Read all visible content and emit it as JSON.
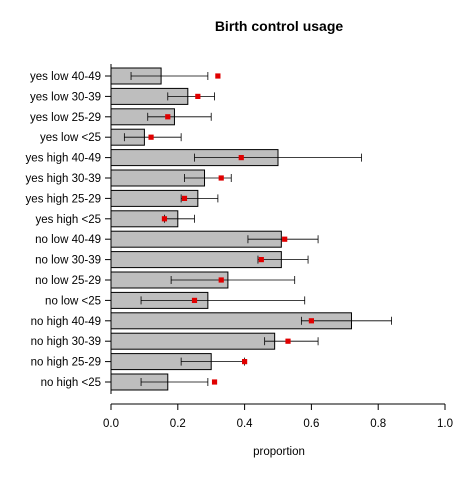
{
  "chart_data": {
    "type": "bar",
    "orientation": "horizontal",
    "title": "Birth control usage",
    "xlabel": "proportion",
    "ylabel": "",
    "xlim": [
      0,
      1
    ],
    "x_ticks": [
      "0.0",
      "0.2",
      "0.4",
      "0.6",
      "0.8",
      "1.0"
    ],
    "grid": false,
    "legend": null,
    "colors": {
      "bar_fill": "#bebebe",
      "bar_stroke": "#000000",
      "marker": "#e00000",
      "error_bar": "#000000"
    },
    "categories": [
      "yes low 40-49",
      "yes low 30-39",
      "yes low 25-29",
      "yes low <25",
      "yes high 40-49",
      "yes high 30-39",
      "yes high 25-29",
      "yes high <25",
      "no low 40-49",
      "no low 30-39",
      "no low 25-29",
      "no low <25",
      "no high 40-49",
      "no high 30-39",
      "no high 25-29",
      "no high <25"
    ],
    "values": [
      0.15,
      0.23,
      0.19,
      0.1,
      0.5,
      0.28,
      0.26,
      0.2,
      0.51,
      0.51,
      0.35,
      0.29,
      0.72,
      0.49,
      0.3,
      0.17
    ],
    "error_low": [
      0.06,
      0.17,
      0.11,
      0.04,
      0.25,
      0.22,
      0.21,
      0.16,
      0.41,
      0.44,
      0.18,
      0.09,
      0.57,
      0.46,
      0.21,
      0.09
    ],
    "error_high": [
      0.29,
      0.31,
      0.3,
      0.21,
      0.75,
      0.36,
      0.32,
      0.25,
      0.62,
      0.59,
      0.55,
      0.58,
      0.84,
      0.62,
      0.4,
      0.29
    ],
    "markers": [
      0.32,
      0.26,
      0.17,
      0.12,
      0.39,
      0.33,
      0.22,
      0.16,
      0.52,
      0.45,
      0.33,
      0.25,
      0.6,
      0.53,
      0.4,
      0.31
    ]
  }
}
